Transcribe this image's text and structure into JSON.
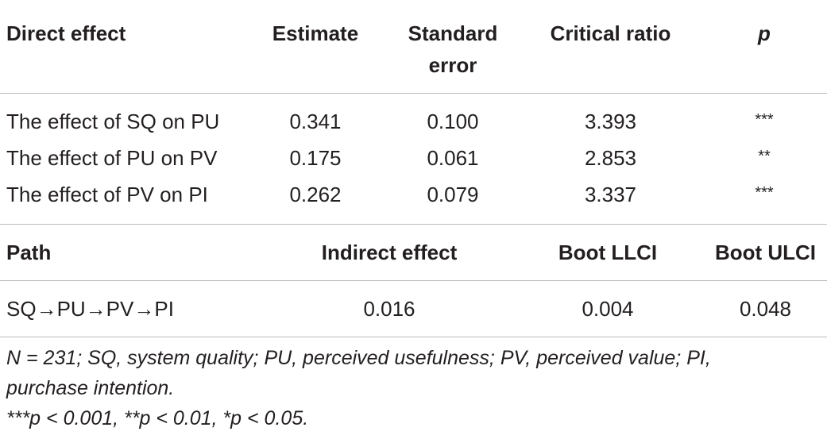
{
  "direct_table": {
    "headers": {
      "effect": "Direct effect",
      "estimate": "Estimate",
      "se_line1": "Standard",
      "se_line2": "error",
      "cr": "Critical ratio",
      "p": "p"
    },
    "rows": [
      {
        "effect": "The effect of SQ on PU",
        "estimate": "0.341",
        "se": "0.100",
        "cr": "3.393",
        "p": "***"
      },
      {
        "effect": "The effect of PU on PV",
        "estimate": "0.175",
        "se": "0.061",
        "cr": "2.853",
        "p": "**"
      },
      {
        "effect": "The effect of PV on PI",
        "estimate": "0.262",
        "se": "0.079",
        "cr": "3.337",
        "p": "***"
      }
    ]
  },
  "indirect_table": {
    "headers": {
      "path": "Path",
      "indirect": "Indirect effect",
      "llci": "Boot LLCI",
      "ulci": "Boot ULCI"
    },
    "rows": [
      {
        "path": "SQ→PU→PV→PI",
        "indirect": "0.016",
        "llci": "0.004",
        "ulci": "0.048"
      }
    ]
  },
  "footnote": {
    "line1": "N = 231; SQ, system quality; PU, perceived usefulness; PV, perceived value; PI,",
    "line2": "purchase intention.",
    "line3": "***p < 0.001, **p < 0.01, *p < 0.05."
  }
}
